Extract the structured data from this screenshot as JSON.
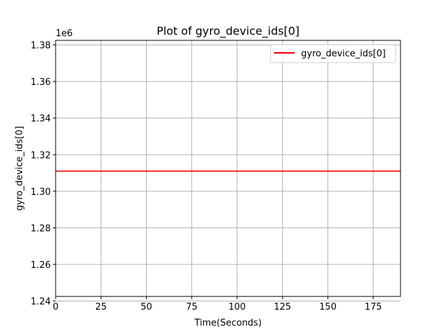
{
  "chart_data": {
    "type": "line",
    "title": "Plot of gyro_device_ids[0]",
    "xlabel": "Time(Seconds)",
    "ylabel": "gyro_device_ids[0]",
    "y_offset_label": "1e6",
    "xlim": [
      0,
      190
    ],
    "ylim": [
      1.2425,
      1.3825
    ],
    "x_ticks": [
      0,
      25,
      50,
      75,
      100,
      125,
      150,
      175
    ],
    "y_ticks": [
      1.24,
      1.26,
      1.28,
      1.3,
      1.32,
      1.34,
      1.36,
      1.38
    ],
    "grid": true,
    "legend_position": "top-right",
    "series": [
      {
        "name": "gyro_device_ids[0]",
        "color": "#ff0000",
        "x": [
          0,
          190
        ],
        "y": [
          1.311,
          1.311
        ]
      }
    ]
  }
}
